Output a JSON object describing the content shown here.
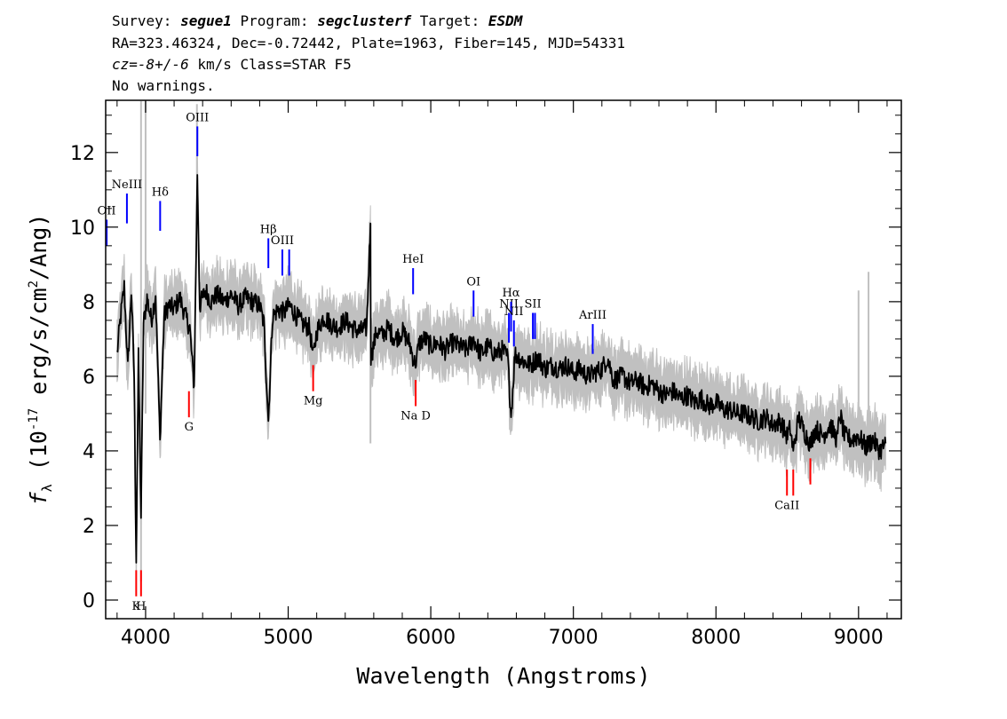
{
  "header": {
    "line1_prefix": "Survey: ",
    "survey": "segue1",
    "line1_mid1": " Program: ",
    "program": "segclusterf",
    "line1_mid2": " Target: ",
    "target": "ESDM",
    "line2": "RA=323.46324, Dec=-0.72442, Plate=1963, Fiber=145, MJD=54331",
    "line3_cz": "cz=-8+/-6",
    "line3_rest": " km/s Class=STAR F5",
    "line4": "No warnings."
  },
  "chart_data": {
    "type": "line",
    "title": "",
    "xlabel": "Wavelength (Angstroms)",
    "ylabel_main": "f",
    "ylabel_sub": "λ",
    "ylabel_rest": " (10",
    "ylabel_exp1": "-17",
    "ylabel_rest2": " erg/s/cm",
    "ylabel_exp2": "2",
    "ylabel_rest3": "/Ang)",
    "xlim": [
      3720,
      9300
    ],
    "ylim": [
      -0.5,
      13.4
    ],
    "xticks": [
      4000,
      5000,
      6000,
      7000,
      8000,
      9000
    ],
    "yticks": [
      0,
      2,
      4,
      6,
      8,
      10,
      12
    ],
    "grid": false,
    "series": [
      {
        "color": "#000000",
        "points": [
          [
            3800,
            6.6
          ],
          [
            3825,
            7.6
          ],
          [
            3850,
            8.4
          ],
          [
            3875,
            6.2
          ],
          [
            3900,
            8.3
          ],
          [
            3920,
            6.0
          ],
          [
            3934,
            1.0
          ],
          [
            3950,
            6.5
          ],
          [
            3968,
            2.2
          ],
          [
            3985,
            7.4
          ],
          [
            4010,
            8.1
          ],
          [
            4040,
            7.5
          ],
          [
            4070,
            8.2
          ],
          [
            4101,
            4.3
          ],
          [
            4130,
            7.6
          ],
          [
            4160,
            7.9
          ],
          [
            4200,
            7.8
          ],
          [
            4240,
            8.1
          ],
          [
            4280,
            7.6
          ],
          [
            4310,
            7.3
          ],
          [
            4340,
            5.7
          ],
          [
            4363,
            11.4
          ],
          [
            4380,
            7.9
          ],
          [
            4420,
            8.3
          ],
          [
            4460,
            8.0
          ],
          [
            4500,
            8.2
          ],
          [
            4550,
            8.0
          ],
          [
            4600,
            8.2
          ],
          [
            4650,
            7.9
          ],
          [
            4700,
            8.1
          ],
          [
            4750,
            8.0
          ],
          [
            4800,
            7.9
          ],
          [
            4830,
            7.4
          ],
          [
            4861,
            4.8
          ],
          [
            4890,
            7.6
          ],
          [
            4930,
            7.8
          ],
          [
            4970,
            7.7
          ],
          [
            5010,
            7.9
          ],
          [
            5060,
            7.6
          ],
          [
            5100,
            7.4
          ],
          [
            5150,
            7.3
          ],
          [
            5175,
            6.5
          ],
          [
            5200,
            7.2
          ],
          [
            5250,
            7.6
          ],
          [
            5300,
            7.4
          ],
          [
            5350,
            7.3
          ],
          [
            5400,
            7.5
          ],
          [
            5450,
            7.3
          ],
          [
            5500,
            7.2
          ],
          [
            5550,
            7.3
          ],
          [
            5577,
            10.1
          ],
          [
            5580,
            6.5
          ],
          [
            5620,
            7.2
          ],
          [
            5660,
            7.1
          ],
          [
            5700,
            7.3
          ],
          [
            5750,
            7.0
          ],
          [
            5800,
            7.2
          ],
          [
            5850,
            6.9
          ],
          [
            5890,
            6.3
          ],
          [
            5920,
            6.9
          ],
          [
            5960,
            7.0
          ],
          [
            6000,
            6.8
          ],
          [
            6050,
            6.9
          ],
          [
            6100,
            6.7
          ],
          [
            6150,
            6.9
          ],
          [
            6200,
            6.8
          ],
          [
            6250,
            6.7
          ],
          [
            6300,
            7.0
          ],
          [
            6350,
            6.6
          ],
          [
            6400,
            6.8
          ],
          [
            6450,
            6.6
          ],
          [
            6500,
            6.7
          ],
          [
            6540,
            6.5
          ],
          [
            6563,
            4.9
          ],
          [
            6590,
            6.6
          ],
          [
            6650,
            6.4
          ],
          [
            6700,
            6.3
          ],
          [
            6750,
            6.5
          ],
          [
            6800,
            6.2
          ],
          [
            6850,
            6.3
          ],
          [
            6900,
            6.2
          ],
          [
            6950,
            6.3
          ],
          [
            7000,
            6.1
          ],
          [
            7050,
            6.2
          ],
          [
            7100,
            6.0
          ],
          [
            7150,
            6.1
          ],
          [
            7200,
            6.2
          ],
          [
            7240,
            6.5
          ],
          [
            7280,
            5.9
          ],
          [
            7350,
            6.0
          ],
          [
            7400,
            5.8
          ],
          [
            7450,
            5.9
          ],
          [
            7500,
            5.7
          ],
          [
            7550,
            5.8
          ],
          [
            7600,
            5.6
          ],
          [
            7650,
            5.5
          ],
          [
            7700,
            5.6
          ],
          [
            7750,
            5.4
          ],
          [
            7800,
            5.5
          ],
          [
            7850,
            5.3
          ],
          [
            7900,
            5.4
          ],
          [
            7950,
            5.2
          ],
          [
            8000,
            5.3
          ],
          [
            8050,
            5.1
          ],
          [
            8100,
            5.1
          ],
          [
            8150,
            5.0
          ],
          [
            8200,
            5.0
          ],
          [
            8250,
            4.9
          ],
          [
            8300,
            4.8
          ],
          [
            8350,
            4.9
          ],
          [
            8400,
            4.7
          ],
          [
            8450,
            4.8
          ],
          [
            8498,
            4.4
          ],
          [
            8520,
            4.6
          ],
          [
            8542,
            4.0
          ],
          [
            8580,
            4.9
          ],
          [
            8620,
            4.5
          ],
          [
            8662,
            4.2
          ],
          [
            8700,
            4.6
          ],
          [
            8750,
            4.4
          ],
          [
            8800,
            4.7
          ],
          [
            8850,
            4.3
          ],
          [
            8870,
            5.0
          ],
          [
            8900,
            4.4
          ],
          [
            8950,
            4.3
          ],
          [
            9000,
            4.4
          ],
          [
            9050,
            4.1
          ],
          [
            9100,
            4.3
          ],
          [
            9150,
            4.0
          ],
          [
            9190,
            4.2
          ]
        ]
      }
    ],
    "emission_lines": [
      {
        "label": "OII",
        "wavelength": 3727,
        "ytop": 10.2,
        "ybot": 9.5
      },
      {
        "label": "NeIII",
        "wavelength": 3869,
        "ytop": 10.9,
        "ybot": 10.1
      },
      {
        "label": "Hδ",
        "wavelength": 4102,
        "ytop": 10.7,
        "ybot": 9.9
      },
      {
        "label": "OIII",
        "wavelength": 4363,
        "ytop": 12.7,
        "ybot": 11.9
      },
      {
        "label": "Hβ",
        "wavelength": 4861,
        "ytop": 9.7,
        "ybot": 8.9
      },
      {
        "label": "OIII",
        "wavelength": 4959,
        "ytop": 9.4,
        "ybot": 8.7
      },
      {
        "label": "",
        "wavelength": 5007,
        "ytop": 9.4,
        "ybot": 8.7
      },
      {
        "label": "HeI",
        "wavelength": 5876,
        "ytop": 8.9,
        "ybot": 8.2
      },
      {
        "label": "OI",
        "wavelength": 6300,
        "ytop": 8.3,
        "ybot": 7.6
      },
      {
        "label": "NII",
        "wavelength": 6548,
        "ytop": 7.7,
        "ybot": 6.9
      },
      {
        "label": "Hα",
        "wavelength": 6563,
        "ytop": 8.0,
        "ybot": 7.2
      },
      {
        "label": "NII",
        "wavelength": 6583,
        "ytop": 7.5,
        "ybot": 6.8
      },
      {
        "label": "SII",
        "wavelength": 6716,
        "ytop": 7.7,
        "ybot": 7.0
      },
      {
        "label": "",
        "wavelength": 6731,
        "ytop": 7.7,
        "ybot": 7.0
      },
      {
        "label": "ArIII",
        "wavelength": 7136,
        "ytop": 7.4,
        "ybot": 6.6
      }
    ],
    "absorption_lines": [
      {
        "label": "K",
        "wavelength": 3934,
        "ytop": 0.8,
        "ybot": 0.1
      },
      {
        "label": "H",
        "wavelength": 3968,
        "ytop": 0.8,
        "ybot": 0.1
      },
      {
        "label": "G",
        "wavelength": 4304,
        "ytop": 5.6,
        "ybot": 4.9
      },
      {
        "label": "Mg",
        "wavelength": 5175,
        "ytop": 6.3,
        "ybot": 5.6
      },
      {
        "label": "Na D",
        "wavelength": 5894,
        "ytop": 5.9,
        "ybot": 5.2
      },
      {
        "label": "CaII",
        "wavelength": 8498,
        "ytop": 3.5,
        "ybot": 2.8
      },
      {
        "label": "",
        "wavelength": 8542,
        "ytop": 3.5,
        "ybot": 2.8
      },
      {
        "label": "",
        "wavelength": 8662,
        "ytop": 3.8,
        "ybot": 3.1
      }
    ],
    "colors": {
      "flux": "#000000",
      "error_band": "#c0c0c0",
      "emission_marker": "#0000ff",
      "absorption_marker": "#ff0000"
    }
  }
}
